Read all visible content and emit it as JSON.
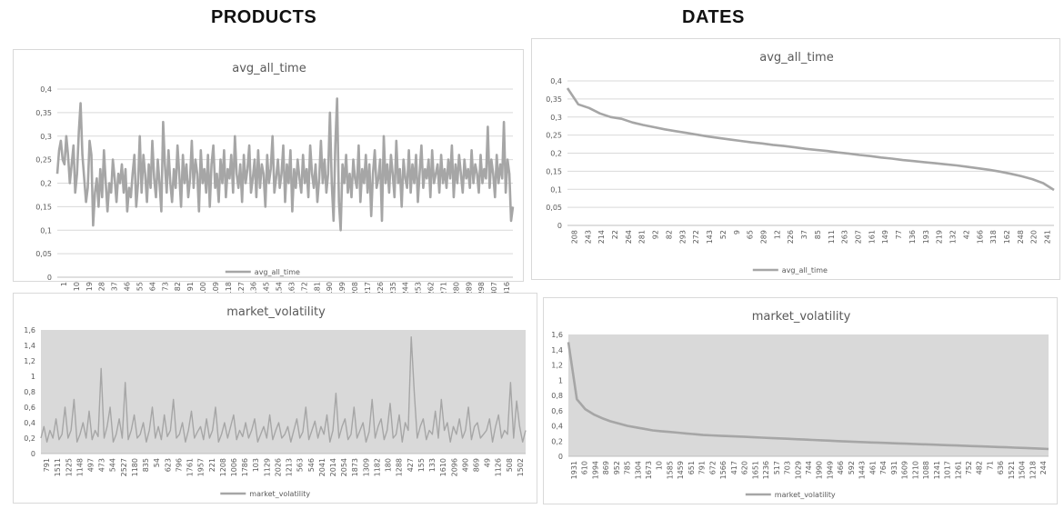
{
  "headings": {
    "left": "PRODUCTS",
    "right": "DATES"
  },
  "colors": {
    "series": "#a6a6a6",
    "grid": "#d9d9d9",
    "plot_fill": "#d9d9d9",
    "text": "#595959",
    "border": "#d9d9d9"
  },
  "chart_data": [
    {
      "id": "products_avg",
      "type": "line",
      "title": "avg_all_time",
      "legend": "avg_all_time",
      "legend_position": "bottom",
      "ylim": [
        0,
        0.4
      ],
      "yticks": [
        "0",
        "0,05",
        "0,1",
        "0,15",
        "0,2",
        "0,25",
        "0,3",
        "0,35",
        "0,4"
      ],
      "xticks": [
        "1",
        "10",
        "19",
        "28",
        "37",
        "46",
        "55",
        "64",
        "73",
        "82",
        "91",
        "100",
        "109",
        "118",
        "127",
        "136",
        "145",
        "154",
        "163",
        "172",
        "181",
        "190",
        "199",
        "208",
        "217",
        "226",
        "235",
        "244",
        "253",
        "262",
        "271",
        "280",
        "289",
        "298",
        "307",
        "316"
      ],
      "grid": true,
      "plot_background": false,
      "series": [
        {
          "name": "avg_all_time",
          "values": [
            0.22,
            0.27,
            0.29,
            0.25,
            0.24,
            0.3,
            0.26,
            0.2,
            0.24,
            0.28,
            0.18,
            0.22,
            0.31,
            0.37,
            0.26,
            0.21,
            0.16,
            0.19,
            0.29,
            0.26,
            0.11,
            0.18,
            0.21,
            0.15,
            0.23,
            0.17,
            0.27,
            0.2,
            0.14,
            0.2,
            0.18,
            0.25,
            0.21,
            0.16,
            0.22,
            0.2,
            0.24,
            0.18,
            0.23,
            0.14,
            0.19,
            0.17,
            0.22,
            0.26,
            0.15,
            0.2,
            0.3,
            0.18,
            0.26,
            0.22,
            0.16,
            0.24,
            0.19,
            0.29,
            0.21,
            0.17,
            0.25,
            0.2,
            0.14,
            0.33,
            0.24,
            0.18,
            0.27,
            0.2,
            0.16,
            0.23,
            0.19,
            0.28,
            0.22,
            0.15,
            0.26,
            0.2,
            0.24,
            0.17,
            0.21,
            0.29,
            0.19,
            0.25,
            0.22,
            0.14,
            0.27,
            0.2,
            0.23,
            0.18,
            0.26,
            0.15,
            0.24,
            0.28,
            0.19,
            0.22,
            0.16,
            0.25,
            0.2,
            0.27,
            0.17,
            0.23,
            0.21,
            0.26,
            0.18,
            0.3,
            0.22,
            0.19,
            0.24,
            0.16,
            0.26,
            0.2,
            0.23,
            0.28,
            0.18,
            0.21,
            0.25,
            0.17,
            0.27,
            0.19,
            0.24,
            0.22,
            0.15,
            0.26,
            0.2,
            0.23,
            0.3,
            0.18,
            0.21,
            0.25,
            0.19,
            0.22,
            0.28,
            0.16,
            0.24,
            0.2,
            0.27,
            0.14,
            0.23,
            0.19,
            0.25,
            0.21,
            0.18,
            0.26,
            0.2,
            0.23,
            0.17,
            0.28,
            0.22,
            0.19,
            0.24,
            0.16,
            0.21,
            0.29,
            0.2,
            0.25,
            0.18,
            0.22,
            0.35,
            0.2,
            0.12,
            0.28,
            0.38,
            0.16,
            0.1,
            0.24,
            0.2,
            0.26,
            0.18,
            0.22,
            0.17,
            0.25,
            0.21,
            0.19,
            0.28,
            0.16,
            0.23,
            0.2,
            0.26,
            0.18,
            0.24,
            0.13,
            0.22,
            0.27,
            0.19,
            0.21,
            0.25,
            0.12,
            0.3,
            0.2,
            0.24,
            0.18,
            0.26,
            0.22,
            0.17,
            0.29,
            0.2,
            0.23,
            0.15,
            0.25,
            0.21,
            0.19,
            0.27,
            0.18,
            0.24,
            0.2,
            0.26,
            0.16,
            0.22,
            0.28,
            0.19,
            0.23,
            0.21,
            0.25,
            0.17,
            0.27,
            0.2,
            0.22,
            0.24,
            0.18,
            0.26,
            0.2,
            0.23,
            0.19,
            0.25,
            0.21,
            0.28,
            0.17,
            0.24,
            0.2,
            0.26,
            0.22,
            0.18,
            0.25,
            0.21,
            0.23,
            0.19,
            0.27,
            0.2,
            0.24,
            0.22,
            0.18,
            0.26,
            0.2,
            0.23,
            0.21,
            0.32,
            0.19,
            0.25,
            0.22,
            0.17,
            0.26,
            0.2,
            0.24,
            0.21,
            0.33,
            0.18,
            0.25,
            0.22,
            0.12,
            0.15
          ]
        }
      ]
    },
    {
      "id": "dates_avg",
      "type": "line",
      "title": "avg_all_time",
      "legend": "avg_all_time",
      "legend_position": "bottom",
      "ylim": [
        0,
        0.4
      ],
      "yticks": [
        "0",
        "0,05",
        "0,1",
        "0,15",
        "0,2",
        "0,25",
        "0,3",
        "0,35",
        "0,4"
      ],
      "xticks": [
        "208",
        "243",
        "214",
        "22",
        "264",
        "281",
        "92",
        "82",
        "293",
        "272",
        "143",
        "52",
        "9",
        "65",
        "289",
        "12",
        "226",
        "37",
        "85",
        "111",
        "263",
        "207",
        "161",
        "149",
        "77",
        "136",
        "193",
        "219",
        "132",
        "42",
        "166",
        "318",
        "162",
        "248",
        "220",
        "241"
      ],
      "grid": true,
      "plot_background": false,
      "series": [
        {
          "name": "avg_all_time",
          "values": [
            0.38,
            0.335,
            0.325,
            0.31,
            0.3,
            0.295,
            0.285,
            0.278,
            0.272,
            0.266,
            0.261,
            0.256,
            0.251,
            0.246,
            0.242,
            0.238,
            0.234,
            0.23,
            0.227,
            0.223,
            0.22,
            0.216,
            0.212,
            0.209,
            0.206,
            0.202,
            0.199,
            0.195,
            0.192,
            0.188,
            0.185,
            0.181,
            0.178,
            0.175,
            0.172,
            0.169,
            0.166,
            0.162,
            0.158,
            0.154,
            0.149,
            0.143,
            0.136,
            0.128,
            0.117,
            0.098
          ]
        }
      ]
    },
    {
      "id": "products_vol",
      "type": "line",
      "title": "market_volatility",
      "legend": "market_volatility",
      "legend_position": "bottom",
      "ylim": [
        0,
        1.6
      ],
      "yticks": [
        "0",
        "0,2",
        "0,4",
        "0,6",
        "0,8",
        "1",
        "1,2",
        "1,4",
        "1,6"
      ],
      "xticks": [
        "791",
        "1511",
        "1225",
        "1148",
        "497",
        "473",
        "544",
        "2527",
        "1180",
        "835",
        "54",
        "623",
        "796",
        "1761",
        "1957",
        "221",
        "1208",
        "1006",
        "1786",
        "103",
        "1129",
        "2026",
        "1213",
        "563",
        "546",
        "2041",
        "2014",
        "2054",
        "1873",
        "1309",
        "1182",
        "180",
        "1288",
        "427",
        "155",
        "133",
        "1610",
        "2096",
        "490",
        "869",
        "49",
        "1126",
        "508",
        "1502"
      ],
      "grid": false,
      "plot_background": true,
      "series": [
        {
          "name": "market_volatility",
          "values": [
            0.2,
            0.35,
            0.15,
            0.3,
            0.2,
            0.45,
            0.18,
            0.25,
            0.6,
            0.2,
            0.3,
            0.7,
            0.15,
            0.25,
            0.4,
            0.2,
            0.55,
            0.18,
            0.3,
            0.22,
            1.1,
            0.2,
            0.35,
            0.6,
            0.15,
            0.25,
            0.45,
            0.2,
            0.92,
            0.18,
            0.3,
            0.5,
            0.2,
            0.25,
            0.4,
            0.15,
            0.3,
            0.6,
            0.2,
            0.35,
            0.18,
            0.5,
            0.22,
            0.3,
            0.7,
            0.2,
            0.25,
            0.4,
            0.15,
            0.3,
            0.55,
            0.2,
            0.28,
            0.35,
            0.18,
            0.45,
            0.2,
            0.3,
            0.6,
            0.15,
            0.25,
            0.4,
            0.2,
            0.35,
            0.5,
            0.18,
            0.3,
            0.22,
            0.4,
            0.2,
            0.3,
            0.45,
            0.15,
            0.25,
            0.35,
            0.2,
            0.5,
            0.18,
            0.3,
            0.4,
            0.2,
            0.25,
            0.35,
            0.15,
            0.3,
            0.45,
            0.2,
            0.28,
            0.6,
            0.18,
            0.3,
            0.42,
            0.2,
            0.35,
            0.25,
            0.5,
            0.15,
            0.3,
            0.78,
            0.2,
            0.35,
            0.45,
            0.18,
            0.25,
            0.6,
            0.2,
            0.3,
            0.4,
            0.15,
            0.28,
            0.7,
            0.2,
            0.35,
            0.45,
            0.18,
            0.3,
            0.65,
            0.2,
            0.25,
            0.5,
            0.15,
            0.4,
            0.3,
            1.51,
            0.8,
            0.2,
            0.35,
            0.45,
            0.18,
            0.3,
            0.25,
            0.55,
            0.2,
            0.7,
            0.3,
            0.4,
            0.15,
            0.35,
            0.25,
            0.45,
            0.2,
            0.3,
            0.6,
            0.18,
            0.35,
            0.4,
            0.2,
            0.25,
            0.3,
            0.45,
            0.15,
            0.35,
            0.5,
            0.2,
            0.3,
            0.25,
            0.92,
            0.2,
            0.68,
            0.35,
            0.15,
            0.3
          ]
        }
      ]
    },
    {
      "id": "dates_vol",
      "type": "line",
      "title": "market_volatility",
      "legend": "market_volatility",
      "legend_position": "bottom",
      "ylim": [
        0,
        1.6
      ],
      "yticks": [
        "0",
        "0,2",
        "0,4",
        "0,6",
        "0,8",
        "1",
        "1,2",
        "1,4",
        "1,6"
      ],
      "xticks": [
        "1931",
        "610",
        "1994",
        "869",
        "952",
        "785",
        "1304",
        "1673",
        "10",
        "1585",
        "1459",
        "651",
        "791",
        "672",
        "1566",
        "417",
        "620",
        "1651",
        "1236",
        "517",
        "703",
        "1029",
        "744",
        "1990",
        "1949",
        "466",
        "592",
        "1443",
        "461",
        "764",
        "931",
        "1609",
        "1210",
        "1088",
        "1241",
        "1017",
        "1261",
        "752",
        "482",
        "71",
        "636",
        "1521",
        "1504",
        "1218",
        "244"
      ],
      "grid": false,
      "plot_background": true,
      "series": [
        {
          "name": "market_volatility",
          "values": [
            1.5,
            0.75,
            0.62,
            0.55,
            0.5,
            0.46,
            0.43,
            0.4,
            0.38,
            0.36,
            0.34,
            0.33,
            0.32,
            0.31,
            0.3,
            0.29,
            0.28,
            0.275,
            0.27,
            0.265,
            0.26,
            0.255,
            0.25,
            0.245,
            0.24,
            0.235,
            0.23,
            0.225,
            0.22,
            0.215,
            0.21,
            0.205,
            0.2,
            0.195,
            0.19,
            0.186,
            0.182,
            0.178,
            0.174,
            0.17,
            0.166,
            0.162,
            0.158,
            0.154,
            0.15,
            0.146,
            0.142,
            0.138,
            0.134,
            0.13,
            0.126,
            0.122,
            0.118,
            0.114,
            0.11,
            0.105,
            0.1,
            0.095
          ]
        }
      ]
    }
  ]
}
